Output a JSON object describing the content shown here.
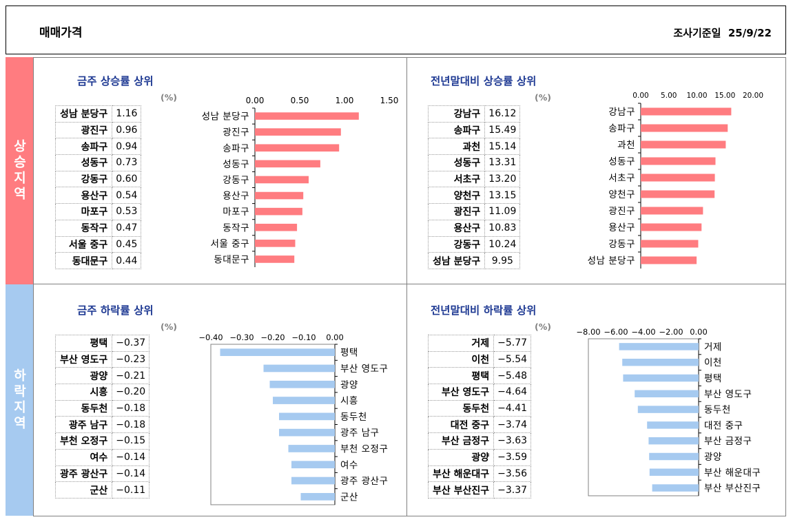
{
  "header": {
    "title": "매매가격",
    "date_label": "조사기준일",
    "date": "25/9/22"
  },
  "sections": {
    "up": "상승지역",
    "down": "하락지역"
  },
  "unit": "(%)",
  "colors": {
    "up": "#FF7C80",
    "down": "#A6CAF0"
  },
  "chart_data": [
    {
      "type": "bar",
      "title": "금주 상승률 상위",
      "categories": [
        "성남 분당구",
        "광진구",
        "송파구",
        "성동구",
        "강동구",
        "용산구",
        "마포구",
        "동작구",
        "서울 중구",
        "동대문구"
      ],
      "values": [
        1.16,
        0.96,
        0.94,
        0.73,
        0.6,
        0.54,
        0.53,
        0.47,
        0.45,
        0.44
      ],
      "xlim": [
        0,
        1.5
      ],
      "ticks": [
        "0.00",
        "0.50",
        "1.00",
        "1.50"
      ],
      "grid": false
    },
    {
      "type": "bar",
      "title": "전년말대비 상승률 상위",
      "categories": [
        "강남구",
        "송파구",
        "과천",
        "성동구",
        "서초구",
        "양천구",
        "광진구",
        "용산구",
        "강동구",
        "성남 분당구"
      ],
      "values": [
        16.12,
        15.49,
        15.14,
        13.31,
        13.2,
        13.15,
        11.09,
        10.83,
        10.24,
        9.95
      ],
      "xlim": [
        0,
        20
      ],
      "ticks": [
        "0.00",
        "5.00",
        "10.00",
        "15.00",
        "20.00"
      ],
      "grid": false
    },
    {
      "type": "bar",
      "title": "금주 하락률 상위",
      "categories": [
        "평택",
        "부산 영도구",
        "광양",
        "시흥",
        "동두천",
        "광주 남구",
        "부천 오정구",
        "여수",
        "광주 광산구",
        "군산"
      ],
      "values": [
        -0.37,
        -0.23,
        -0.21,
        -0.2,
        -0.18,
        -0.18,
        -0.15,
        -0.14,
        -0.14,
        -0.11
      ],
      "xlim": [
        -0.4,
        0
      ],
      "ticks": [
        "-0.40",
        "-0.30",
        "-0.20",
        "-0.10",
        "0.00"
      ],
      "grid": false
    },
    {
      "type": "bar",
      "title": "전년말대비 하락률 상위",
      "categories": [
        "거제",
        "이천",
        "평택",
        "부산 영도구",
        "동두천",
        "대전 중구",
        "부산 금정구",
        "광양",
        "부산 해운대구",
        "부산 부산진구"
      ],
      "values": [
        -5.77,
        -5.54,
        -5.48,
        -4.64,
        -4.41,
        -3.74,
        -3.63,
        -3.59,
        -3.56,
        -3.37
      ],
      "xlim": [
        -8,
        0
      ],
      "ticks": [
        "-8.00",
        "-6.00",
        "-4.00",
        "-2.00",
        "0.00"
      ],
      "grid": false
    }
  ]
}
